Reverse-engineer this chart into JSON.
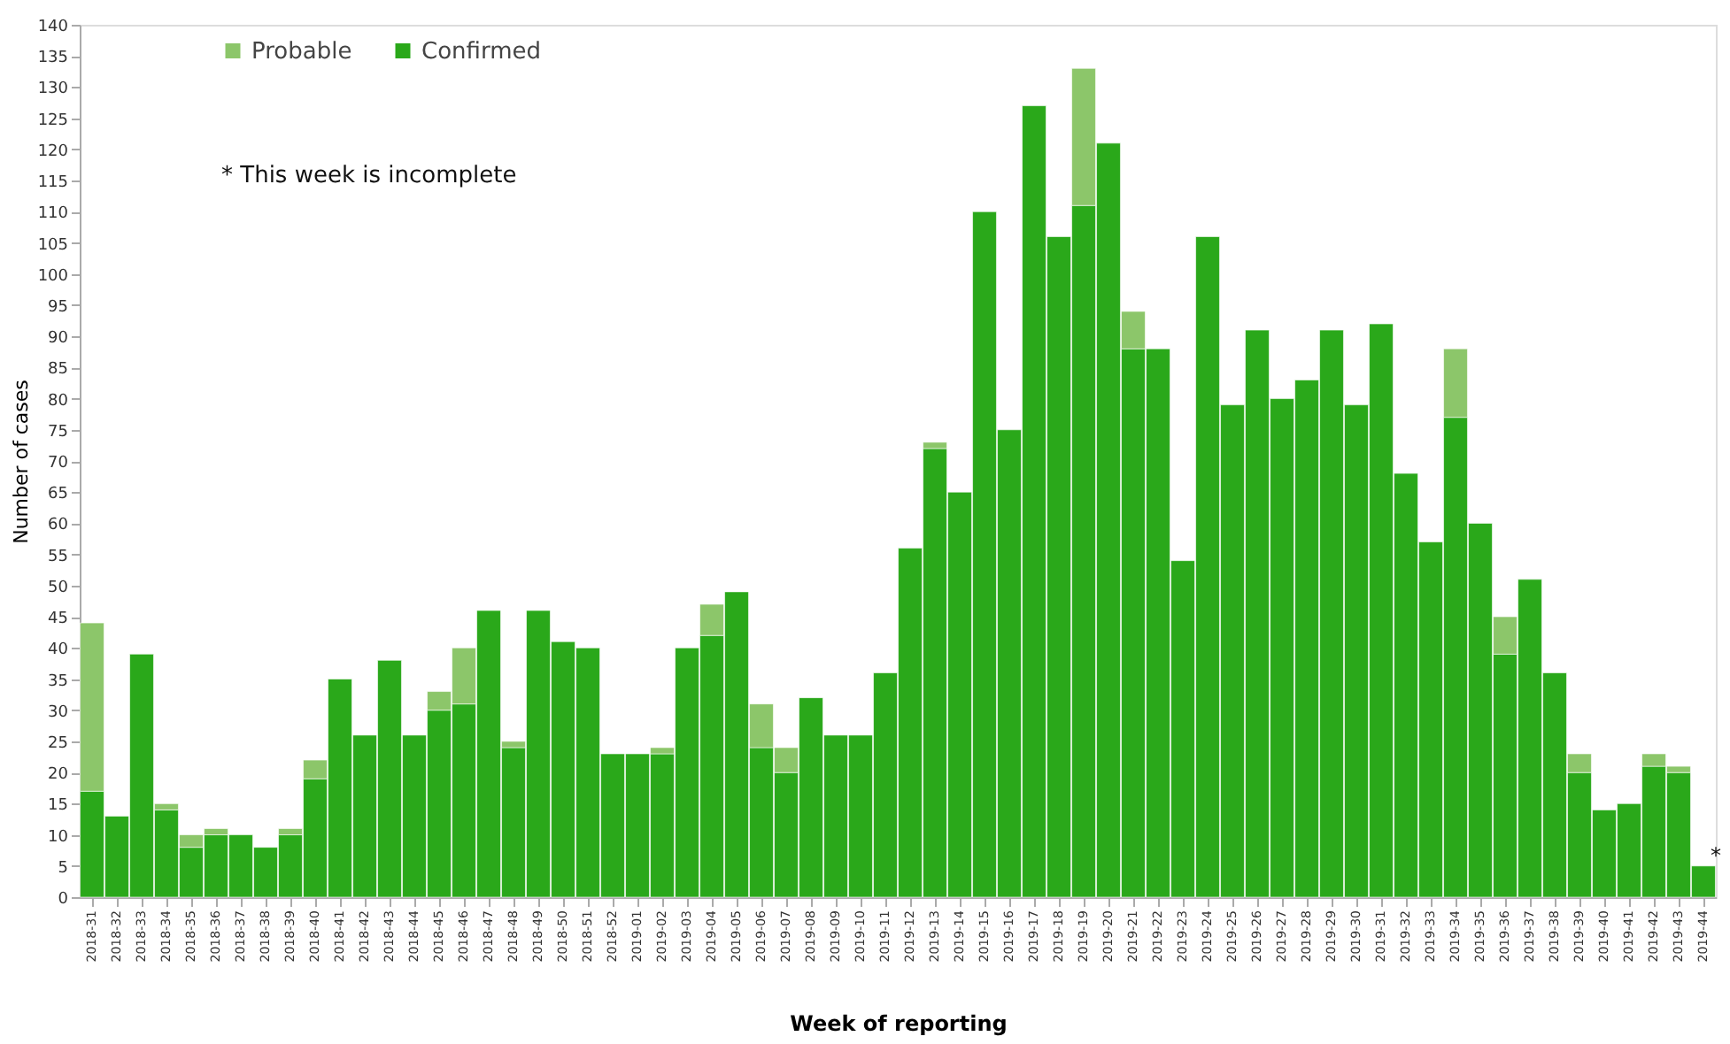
{
  "chart_data": {
    "type": "bar",
    "stacked": true,
    "xlabel": "Week of reporting",
    "ylabel": "Number of cases",
    "categories": [
      "2018-31",
      "2018-32",
      "2018-33",
      "2018-34",
      "2018-35",
      "2018-36",
      "2018-37",
      "2018-38",
      "2018-39",
      "2018-40",
      "2018-41",
      "2018-42",
      "2018-43",
      "2018-44",
      "2018-45",
      "2018-46",
      "2018-47",
      "2018-48",
      "2018-49",
      "2018-50",
      "2018-51",
      "2018-52",
      "2019-01",
      "2019-02",
      "2019-03",
      "2019-04",
      "2019-05",
      "2019-06",
      "2019-07",
      "2019-08",
      "2019-09",
      "2019-10",
      "2019-11",
      "2019-12",
      "2019-13",
      "2019-14",
      "2019-15",
      "2019-16",
      "2019-17",
      "2019-18",
      "2019-19",
      "2019-20",
      "2019-21",
      "2019-22",
      "2019-23",
      "2019-24",
      "2019-25",
      "2019-26",
      "2019-27",
      "2019-28",
      "2019-29",
      "2019-30",
      "2019-31",
      "2019-32",
      "2019-33",
      "2019-34",
      "2019-35",
      "2019-36",
      "2019-37",
      "2019-38",
      "2019-39",
      "2019-40",
      "2019-41",
      "2019-42",
      "2019-43",
      "2019-44"
    ],
    "series": [
      {
        "name": "Confirmed",
        "color": "#2aa81a",
        "values": [
          17,
          13,
          39,
          14,
          8,
          10,
          10,
          8,
          10,
          19,
          35,
          26,
          38,
          26,
          30,
          31,
          46,
          24,
          46,
          41,
          40,
          23,
          23,
          23,
          40,
          42,
          49,
          24,
          20,
          32,
          26,
          26,
          36,
          56,
          72,
          65,
          110,
          75,
          127,
          106,
          111,
          121,
          88,
          88,
          54,
          106,
          79,
          91,
          80,
          83,
          91,
          79,
          92,
          68,
          57,
          77,
          60,
          39,
          51,
          36,
          20,
          14,
          15,
          21,
          20,
          5
        ]
      },
      {
        "name": "Probable",
        "color": "#8cc66a",
        "values": [
          27,
          null,
          null,
          1,
          2,
          1,
          null,
          null,
          1,
          3,
          null,
          null,
          null,
          null,
          3,
          9,
          null,
          1,
          null,
          null,
          null,
          null,
          null,
          1,
          null,
          5,
          null,
          7,
          4,
          null,
          null,
          null,
          null,
          null,
          1,
          null,
          null,
          null,
          null,
          null,
          22,
          null,
          6,
          null,
          null,
          null,
          null,
          null,
          null,
          null,
          null,
          null,
          null,
          null,
          null,
          11,
          null,
          6,
          null,
          null,
          3,
          null,
          null,
          2,
          1,
          null
        ]
      }
    ],
    "ylim": [
      0,
      140
    ],
    "yticks": [
      0,
      5,
      10,
      15,
      20,
      25,
      30,
      35,
      40,
      45,
      50,
      55,
      60,
      65,
      70,
      75,
      80,
      85,
      90,
      95,
      100,
      105,
      110,
      115,
      120,
      125,
      130,
      135,
      140
    ],
    "legend": "top left",
    "annotations": [
      "* This week is incomplete",
      {
        "text": "*",
        "x": "2019-44",
        "y": 5
      }
    ]
  }
}
